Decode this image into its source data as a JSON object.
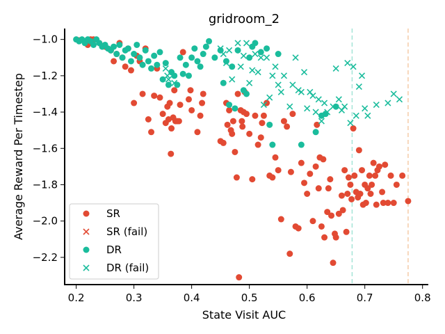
{
  "chart_data": {
    "type": "scatter",
    "title": "gridroom_2",
    "xlabel": "State Visit AUC",
    "ylabel": "Average Reward Per Timestep",
    "xlim": [
      0.18,
      0.81
    ],
    "ylim": [
      -2.35,
      -0.94
    ],
    "xticks": [
      0.2,
      0.3,
      0.4,
      0.5,
      0.6,
      0.7,
      0.8
    ],
    "yticks": [
      -1.0,
      -1.2,
      -1.4,
      -1.6,
      -1.8,
      -2.0,
      -2.2
    ],
    "grid": false,
    "legend_position": "lower-left",
    "colors": {
      "SR": "#e24a33",
      "DR": "#1abc9c",
      "SR_ref_line": "#f5cba7",
      "DR_ref_line": "#a3e4d7"
    },
    "reference_lines": [
      {
        "series": "DR",
        "x": 0.678
      },
      {
        "series": "SR",
        "x": 0.775
      }
    ],
    "series": [
      {
        "name": "SR",
        "marker": "circle",
        "color": "#e24a33",
        "points": [
          [
            0.205,
            -1.005
          ],
          [
            0.215,
            -1.01
          ],
          [
            0.22,
            -1.03
          ],
          [
            0.225,
            -1.0
          ],
          [
            0.23,
            -1.0
          ],
          [
            0.24,
            -1.02
          ],
          [
            0.25,
            -1.04
          ],
          [
            0.26,
            -1.06
          ],
          [
            0.265,
            -1.12
          ],
          [
            0.27,
            -1.08
          ],
          [
            0.275,
            -1.02
          ],
          [
            0.28,
            -1.1
          ],
          [
            0.285,
            -1.15
          ],
          [
            0.29,
            -1.05
          ],
          [
            0.295,
            -1.17
          ],
          [
            0.3,
            -1.35
          ],
          [
            0.305,
            -1.09
          ],
          [
            0.31,
            -1.12
          ],
          [
            0.315,
            -1.3
          ],
          [
            0.32,
            -1.05
          ],
          [
            0.325,
            -1.44
          ],
          [
            0.33,
            -1.51
          ],
          [
            0.335,
            -1.31
          ],
          [
            0.34,
            -1.16
          ],
          [
            0.345,
            -1.32
          ],
          [
            0.35,
            -1.41
          ],
          [
            0.355,
            -1.46
          ],
          [
            0.358,
            -1.37
          ],
          [
            0.36,
            -1.44
          ],
          [
            0.362,
            -1.35
          ],
          [
            0.364,
            -1.63
          ],
          [
            0.365,
            -1.49
          ],
          [
            0.368,
            -1.43
          ],
          [
            0.37,
            -1.28
          ],
          [
            0.372,
            -1.45
          ],
          [
            0.375,
            -1.45
          ],
          [
            0.378,
            -1.45
          ],
          [
            0.38,
            -1.36
          ],
          [
            0.385,
            -1.07
          ],
          [
            0.395,
            -1.33
          ],
          [
            0.398,
            -1.28
          ],
          [
            0.4,
            -1.39
          ],
          [
            0.41,
            -1.51
          ],
          [
            0.415,
            -1.42
          ],
          [
            0.418,
            -1.35
          ],
          [
            0.42,
            -1.3
          ],
          [
            0.45,
            -1.56
          ],
          [
            0.455,
            -1.57
          ],
          [
            0.46,
            -1.35
          ],
          [
            0.462,
            -1.47
          ],
          [
            0.465,
            -1.39
          ],
          [
            0.468,
            -1.5
          ],
          [
            0.47,
            -1.52
          ],
          [
            0.472,
            -1.45
          ],
          [
            0.475,
            -1.62
          ],
          [
            0.478,
            -1.76
          ],
          [
            0.48,
            -1.3
          ],
          [
            0.482,
            -2.31
          ],
          [
            0.485,
            -1.39
          ],
          [
            0.487,
            -1.45
          ],
          [
            0.488,
            -1.48
          ],
          [
            0.49,
            -1.4
          ],
          [
            0.492,
            -1.29
          ],
          [
            0.495,
            -1.41
          ],
          [
            0.5,
            -1.52
          ],
          [
            0.505,
            -1.77
          ],
          [
            0.51,
            -1.42
          ],
          [
            0.515,
            -1.58
          ],
          [
            0.52,
            -1.54
          ],
          [
            0.522,
            -1.46
          ],
          [
            0.525,
            -1.42
          ],
          [
            0.53,
            -1.35
          ],
          [
            0.535,
            -1.75
          ],
          [
            0.54,
            -1.76
          ],
          [
            0.545,
            -1.65
          ],
          [
            0.55,
            -1.72
          ],
          [
            0.555,
            -1.99
          ],
          [
            0.56,
            -1.45
          ],
          [
            0.565,
            -1.48
          ],
          [
            0.57,
            -2.18
          ],
          [
            0.572,
            -1.73
          ],
          [
            0.575,
            -1.41
          ],
          [
            0.58,
            -2.03
          ],
          [
            0.585,
            -2.04
          ],
          [
            0.59,
            -1.68
          ],
          [
            0.595,
            -1.79
          ],
          [
            0.6,
            -1.85
          ],
          [
            0.605,
            -1.74
          ],
          [
            0.61,
            -2.0
          ],
          [
            0.615,
            -1.7
          ],
          [
            0.617,
            -1.47
          ],
          [
            0.62,
            -1.82
          ],
          [
            0.622,
            -1.65
          ],
          [
            0.625,
            -2.03
          ],
          [
            0.628,
            -1.66
          ],
          [
            0.63,
            -2.09
          ],
          [
            0.635,
            -1.95
          ],
          [
            0.637,
            -1.82
          ],
          [
            0.64,
            -1.77
          ],
          [
            0.642,
            -1.97
          ],
          [
            0.645,
            -2.23
          ],
          [
            0.648,
            -2.07
          ],
          [
            0.65,
            -2.09
          ],
          [
            0.655,
            -1.96
          ],
          [
            0.66,
            -1.86
          ],
          [
            0.662,
            -1.94
          ],
          [
            0.665,
            -1.72
          ],
          [
            0.668,
            -2.06
          ],
          [
            0.67,
            -1.85
          ],
          [
            0.672,
            -1.76
          ],
          [
            0.675,
            -1.8
          ],
          [
            0.677,
            -1.88
          ],
          [
            0.68,
            -1.49
          ],
          [
            0.682,
            -1.75
          ],
          [
            0.685,
            -1.84
          ],
          [
            0.688,
            -1.87
          ],
          [
            0.69,
            -1.61
          ],
          [
            0.692,
            -1.85
          ],
          [
            0.695,
            -1.72
          ],
          [
            0.697,
            -1.91
          ],
          [
            0.7,
            -1.8
          ],
          [
            0.702,
            -1.9
          ],
          [
            0.705,
            -1.82
          ],
          [
            0.708,
            -1.75
          ],
          [
            0.71,
            -1.85
          ],
          [
            0.712,
            -1.8
          ],
          [
            0.715,
            -1.68
          ],
          [
            0.718,
            -1.75
          ],
          [
            0.72,
            -1.91
          ],
          [
            0.722,
            -1.72
          ],
          [
            0.725,
            -1.7
          ],
          [
            0.73,
            -1.84
          ],
          [
            0.732,
            -1.9
          ],
          [
            0.735,
            -1.69
          ],
          [
            0.74,
            -1.9
          ],
          [
            0.745,
            -1.75
          ],
          [
            0.75,
            -1.9
          ],
          [
            0.755,
            -1.8
          ],
          [
            0.765,
            -1.75
          ],
          [
            0.775,
            -1.89
          ]
        ]
      },
      {
        "name": "SR (fail)",
        "marker": "x",
        "color": "#e24a33",
        "points": []
      },
      {
        "name": "DR",
        "marker": "circle",
        "color": "#1abc9c",
        "points": [
          [
            0.2,
            -1.0
          ],
          [
            0.205,
            -1.01
          ],
          [
            0.21,
            -1.0
          ],
          [
            0.215,
            -1.02
          ],
          [
            0.22,
            -1.0
          ],
          [
            0.225,
            -1.01
          ],
          [
            0.23,
            -1.03
          ],
          [
            0.235,
            -1.0
          ],
          [
            0.24,
            -1.02
          ],
          [
            0.245,
            -1.04
          ],
          [
            0.25,
            -1.03
          ],
          [
            0.255,
            -1.05
          ],
          [
            0.26,
            -1.06
          ],
          [
            0.265,
            -1.04
          ],
          [
            0.27,
            -1.08
          ],
          [
            0.275,
            -1.03
          ],
          [
            0.28,
            -1.1
          ],
          [
            0.285,
            -1.06
          ],
          [
            0.29,
            -1.05
          ],
          [
            0.295,
            -1.12
          ],
          [
            0.3,
            -1.08
          ],
          [
            0.305,
            -1.03
          ],
          [
            0.31,
            -1.1
          ],
          [
            0.315,
            -1.14
          ],
          [
            0.32,
            -1.06
          ],
          [
            0.325,
            -1.12
          ],
          [
            0.33,
            -1.16
          ],
          [
            0.335,
            -1.09
          ],
          [
            0.34,
            -1.14
          ],
          [
            0.345,
            -1.07
          ],
          [
            0.35,
            -1.22
          ],
          [
            0.355,
            -1.13
          ],
          [
            0.36,
            -1.25
          ],
          [
            0.365,
            -1.18
          ],
          [
            0.37,
            -1.2
          ],
          [
            0.375,
            -1.25
          ],
          [
            0.38,
            -1.1
          ],
          [
            0.385,
            -1.19
          ],
          [
            0.39,
            -1.14
          ],
          [
            0.395,
            -1.2
          ],
          [
            0.4,
            -1.1
          ],
          [
            0.405,
            -1.05
          ],
          [
            0.41,
            -1.12
          ],
          [
            0.415,
            -1.15
          ],
          [
            0.42,
            -1.08
          ],
          [
            0.425,
            -1.04
          ],
          [
            0.43,
            -1.01
          ],
          [
            0.44,
            -1.1
          ],
          [
            0.45,
            -1.06
          ],
          [
            0.455,
            -1.24
          ],
          [
            0.46,
            -1.12
          ],
          [
            0.465,
            -1.36
          ],
          [
            0.47,
            -1.15
          ],
          [
            0.475,
            -1.38
          ],
          [
            0.48,
            -1.06
          ],
          [
            0.49,
            -1.28
          ],
          [
            0.495,
            -1.3
          ],
          [
            0.5,
            -1.1
          ],
          [
            0.505,
            -1.04
          ],
          [
            0.51,
            -1.02
          ],
          [
            0.52,
            -1.07
          ],
          [
            0.53,
            -1.05
          ],
          [
            0.535,
            -1.47
          ],
          [
            0.54,
            -1.58
          ],
          [
            0.55,
            -1.08
          ],
          [
            0.59,
            -1.58
          ],
          [
            0.615,
            -1.51
          ],
          [
            0.625,
            -1.42
          ],
          [
            0.632,
            -1.41
          ],
          [
            0.65,
            -1.37
          ]
        ]
      },
      {
        "name": "DR (fail)",
        "marker": "x",
        "color": "#1abc9c",
        "points": [
          [
            0.355,
            -1.16
          ],
          [
            0.358,
            -1.2
          ],
          [
            0.36,
            -1.22
          ],
          [
            0.37,
            -1.24
          ],
          [
            0.45,
            -1.05
          ],
          [
            0.455,
            -1.08
          ],
          [
            0.46,
            -1.13
          ],
          [
            0.465,
            -1.06
          ],
          [
            0.47,
            -1.22
          ],
          [
            0.48,
            -1.02
          ],
          [
            0.485,
            -1.15
          ],
          [
            0.49,
            -1.09
          ],
          [
            0.495,
            -1.02
          ],
          [
            0.5,
            -1.24
          ],
          [
            0.505,
            -1.17
          ],
          [
            0.51,
            -1.08
          ],
          [
            0.515,
            -1.18
          ],
          [
            0.52,
            -1.1
          ],
          [
            0.525,
            -1.36
          ],
          [
            0.53,
            -1.1
          ],
          [
            0.535,
            -1.32
          ],
          [
            0.54,
            -1.2
          ],
          [
            0.545,
            -1.15
          ],
          [
            0.55,
            -1.25
          ],
          [
            0.555,
            -1.29
          ],
          [
            0.56,
            -1.2
          ],
          [
            0.57,
            -1.37
          ],
          [
            0.575,
            -1.25
          ],
          [
            0.58,
            -1.1
          ],
          [
            0.585,
            -1.28
          ],
          [
            0.59,
            -1.29
          ],
          [
            0.595,
            -1.18
          ],
          [
            0.6,
            -1.38
          ],
          [
            0.605,
            -1.29
          ],
          [
            0.61,
            -1.31
          ],
          [
            0.615,
            -1.4
          ],
          [
            0.62,
            -1.33
          ],
          [
            0.625,
            -1.45
          ],
          [
            0.63,
            -1.35
          ],
          [
            0.635,
            -1.4
          ],
          [
            0.645,
            -1.37
          ],
          [
            0.65,
            -1.16
          ],
          [
            0.655,
            -1.33
          ],
          [
            0.66,
            -1.39
          ],
          [
            0.665,
            -1.37
          ],
          [
            0.67,
            -1.13
          ],
          [
            0.675,
            -1.46
          ],
          [
            0.68,
            -1.15
          ],
          [
            0.685,
            -1.42
          ],
          [
            0.69,
            -1.26
          ],
          [
            0.695,
            -1.2
          ],
          [
            0.7,
            -1.38
          ],
          [
            0.705,
            -1.42
          ],
          [
            0.72,
            -1.36
          ],
          [
            0.74,
            -1.35
          ],
          [
            0.75,
            -1.3
          ],
          [
            0.76,
            -1.33
          ]
        ]
      }
    ]
  }
}
